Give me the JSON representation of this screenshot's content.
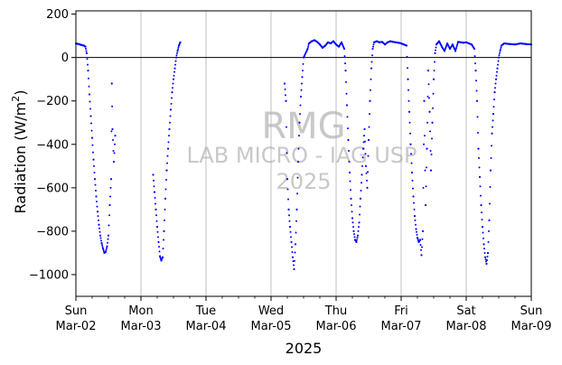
{
  "chart_data": {
    "type": "scatter",
    "ylabel": "Radiation (W/m²)",
    "ylabel_main": "Radiation (W/m",
    "ylabel_sup": "2",
    "ylabel_close": ")",
    "xlabel": "2025",
    "ylim": [
      -1100,
      215
    ],
    "xlim": [
      "2025-03-02",
      "2025-03-09"
    ],
    "yticks": [
      200,
      0,
      -200,
      -400,
      -600,
      -800,
      -1000
    ],
    "ytick_labels": [
      "200",
      "0",
      "−200",
      "−400",
      "−600",
      "−800",
      "−1000"
    ],
    "xticks": [
      {
        "x": "2025-03-02",
        "day": "Sun",
        "date": "Mar-02"
      },
      {
        "x": "2025-03-03",
        "day": "Mon",
        "date": "Mar-03"
      },
      {
        "x": "2025-03-04",
        "day": "Tue",
        "date": "Mar-04"
      },
      {
        "x": "2025-03-05",
        "day": "Wed",
        "date": "Mar-05"
      },
      {
        "x": "2025-03-06",
        "day": "Thu",
        "date": "Mar-06"
      },
      {
        "x": "2025-03-07",
        "day": "Fri",
        "date": "Mar-07"
      },
      {
        "x": "2025-03-08",
        "day": "Sat",
        "date": "Mar-08"
      },
      {
        "x": "2025-03-09",
        "day": "Sun",
        "date": "Mar-09"
      }
    ],
    "grid": "vertical",
    "zero_line": 0,
    "marker_color": "#0000ff",
    "watermark": [
      "RMG",
      "LAB MICRO - IAG USP",
      "2025"
    ],
    "series": [
      {
        "points": [
          [
            "2025-03-02T00:00",
            65
          ],
          [
            "2025-03-02T00:30",
            63
          ],
          [
            "2025-03-02T01:00",
            62
          ],
          [
            "2025-03-02T01:30",
            60
          ],
          [
            "2025-03-02T02:00",
            58
          ],
          [
            "2025-03-02T02:30",
            56
          ],
          [
            "2025-03-02T03:00",
            55
          ],
          [
            "2025-03-02T03:30",
            50
          ],
          [
            "2025-03-02T04:00",
            20
          ],
          [
            "2025-03-02T04:30",
            -60
          ],
          [
            "2025-03-02T05:00",
            -170
          ],
          [
            "2025-03-02T05:30",
            -270
          ],
          [
            "2025-03-02T06:00",
            -370
          ],
          [
            "2025-03-02T06:30",
            -470
          ],
          [
            "2025-03-02T07:00",
            -560
          ],
          [
            "2025-03-02T07:30",
            -640
          ],
          [
            "2025-03-02T08:00",
            -710
          ],
          [
            "2025-03-02T08:30",
            -770
          ],
          [
            "2025-03-02T09:00",
            -820
          ],
          [
            "2025-03-02T09:30",
            -855
          ],
          [
            "2025-03-02T10:00",
            -880
          ],
          [
            "2025-03-02T10:30",
            -900
          ],
          [
            "2025-03-02T11:00",
            -895
          ],
          [
            "2025-03-02T11:30",
            -870
          ],
          [
            "2025-03-02T12:00",
            -820
          ],
          [
            "2025-03-02T12:30",
            -680
          ],
          [
            "2025-03-02T13:00",
            -560
          ],
          [
            "2025-03-02T13:15",
            -120
          ],
          [
            "2025-03-02T13:30",
            -330
          ],
          [
            "2025-03-02T14:00",
            -480
          ],
          [
            "2025-03-02T14:30",
            -360
          ],
          [
            "2025-03-03T04:30",
            -540
          ],
          [
            "2025-03-03T05:00",
            -620
          ],
          [
            "2025-03-03T05:30",
            -700
          ],
          [
            "2025-03-03T06:00",
            -780
          ],
          [
            "2025-03-03T06:30",
            -850
          ],
          [
            "2025-03-03T07:00",
            -915
          ],
          [
            "2025-03-03T07:30",
            -935
          ],
          [
            "2025-03-03T08:00",
            -920
          ],
          [
            "2025-03-03T08:30",
            -800
          ],
          [
            "2025-03-03T09:00",
            -650
          ],
          [
            "2025-03-03T09:30",
            -520
          ],
          [
            "2025-03-03T10:00",
            -420
          ],
          [
            "2025-03-03T10:30",
            -330
          ],
          [
            "2025-03-03T11:00",
            -240
          ],
          [
            "2025-03-03T11:30",
            -160
          ],
          [
            "2025-03-03T12:00",
            -100
          ],
          [
            "2025-03-03T12:30",
            -50
          ],
          [
            "2025-03-03T13:00",
            0
          ],
          [
            "2025-03-03T13:30",
            30
          ],
          [
            "2025-03-03T14:00",
            55
          ],
          [
            "2025-03-03T14:30",
            70
          ],
          [
            "2025-03-05T05:00",
            -120
          ],
          [
            "2025-03-05T05:30",
            -200
          ],
          [
            "2025-03-05T06:00",
            -560
          ],
          [
            "2025-03-05T06:30",
            -700
          ],
          [
            "2025-03-05T07:00",
            -780
          ],
          [
            "2025-03-05T07:30",
            -850
          ],
          [
            "2025-03-05T08:00",
            -920
          ],
          [
            "2025-03-05T08:30",
            -975
          ],
          [
            "2025-03-05T09:00",
            -860
          ],
          [
            "2025-03-05T09:30",
            -700
          ],
          [
            "2025-03-05T10:00",
            -480
          ],
          [
            "2025-03-05T10:30",
            -300
          ],
          [
            "2025-03-05T11:00",
            -180
          ],
          [
            "2025-03-05T11:30",
            -90
          ],
          [
            "2025-03-05T12:00",
            0
          ],
          [
            "2025-03-05T13:30",
            40
          ],
          [
            "2025-03-05T14:00",
            65
          ],
          [
            "2025-03-05T15:00",
            75
          ],
          [
            "2025-03-05T16:00",
            80
          ],
          [
            "2025-03-05T17:00",
            72
          ],
          [
            "2025-03-05T18:00",
            60
          ],
          [
            "2025-03-05T19:00",
            45
          ],
          [
            "2025-03-05T20:00",
            55
          ],
          [
            "2025-03-05T21:00",
            70
          ],
          [
            "2025-03-05T22:00",
            65
          ],
          [
            "2025-03-05T23:00",
            75
          ],
          [
            "2025-03-06T00:00",
            60
          ],
          [
            "2025-03-06T01:00",
            50
          ],
          [
            "2025-03-06T02:00",
            70
          ],
          [
            "2025-03-06T03:00",
            40
          ],
          [
            "2025-03-06T03:30",
            -60
          ],
          [
            "2025-03-06T04:00",
            -220
          ],
          [
            "2025-03-06T04:30",
            -380
          ],
          [
            "2025-03-06T05:00",
            -530
          ],
          [
            "2025-03-06T05:30",
            -650
          ],
          [
            "2025-03-06T06:00",
            -740
          ],
          [
            "2025-03-06T06:30",
            -800
          ],
          [
            "2025-03-06T07:00",
            -840
          ],
          [
            "2025-03-06T07:30",
            -850
          ],
          [
            "2025-03-06T08:00",
            -820
          ],
          [
            "2025-03-06T08:30",
            -760
          ],
          [
            "2025-03-06T09:00",
            -650
          ],
          [
            "2025-03-06T09:30",
            -540
          ],
          [
            "2025-03-06T10:00",
            -420
          ],
          [
            "2025-03-06T10:30",
            -330
          ],
          [
            "2025-03-06T11:00",
            -500
          ],
          [
            "2025-03-06T11:30",
            -600
          ],
          [
            "2025-03-06T12:00",
            -380
          ],
          [
            "2025-03-06T12:30",
            -200
          ],
          [
            "2025-03-06T13:00",
            -50
          ],
          [
            "2025-03-06T13:30",
            40
          ],
          [
            "2025-03-06T14:00",
            70
          ],
          [
            "2025-03-06T15:00",
            75
          ],
          [
            "2025-03-06T16:00",
            70
          ],
          [
            "2025-03-06T17:00",
            72
          ],
          [
            "2025-03-06T18:00",
            60
          ],
          [
            "2025-03-06T19:00",
            70
          ],
          [
            "2025-03-06T20:00",
            75
          ],
          [
            "2025-03-06T21:00",
            72
          ],
          [
            "2025-03-06T22:00",
            70
          ],
          [
            "2025-03-06T23:00",
            68
          ],
          [
            "2025-03-07T00:00",
            65
          ],
          [
            "2025-03-07T01:00",
            60
          ],
          [
            "2025-03-07T02:00",
            55
          ],
          [
            "2025-03-07T02:30",
            -100
          ],
          [
            "2025-03-07T03:00",
            -250
          ],
          [
            "2025-03-07T03:30",
            -400
          ],
          [
            "2025-03-07T04:00",
            -530
          ],
          [
            "2025-03-07T04:30",
            -640
          ],
          [
            "2025-03-07T05:00",
            -730
          ],
          [
            "2025-03-07T05:30",
            -790
          ],
          [
            "2025-03-07T06:00",
            -830
          ],
          [
            "2025-03-07T06:30",
            -850
          ],
          [
            "2025-03-07T07:00",
            -840
          ],
          [
            "2025-03-07T07:30",
            -910
          ],
          [
            "2025-03-07T08:00",
            -800
          ],
          [
            "2025-03-07T08:30",
            -200
          ],
          [
            "2025-03-07T09:00",
            -680
          ],
          [
            "2025-03-07T09:30",
            -420
          ],
          [
            "2025-03-07T10:00",
            -60
          ],
          [
            "2025-03-07T10:30",
            -250
          ],
          [
            "2025-03-07T11:00",
            -520
          ],
          [
            "2025-03-07T11:30",
            -300
          ],
          [
            "2025-03-07T12:00",
            -100
          ],
          [
            "2025-03-07T12:30",
            20
          ],
          [
            "2025-03-07T13:00",
            60
          ],
          [
            "2025-03-07T14:00",
            75
          ],
          [
            "2025-03-07T15:00",
            50
          ],
          [
            "2025-03-07T16:00",
            30
          ],
          [
            "2025-03-07T17:00",
            65
          ],
          [
            "2025-03-07T18:00",
            40
          ],
          [
            "2025-03-07T19:00",
            60
          ],
          [
            "2025-03-07T20:00",
            30
          ],
          [
            "2025-03-07T21:00",
            72
          ],
          [
            "2025-03-07T22:00",
            70
          ],
          [
            "2025-03-07T23:00",
            68
          ],
          [
            "2025-03-08T00:00",
            70
          ],
          [
            "2025-03-08T01:00",
            65
          ],
          [
            "2025-03-08T02:00",
            60
          ],
          [
            "2025-03-08T03:00",
            40
          ],
          [
            "2025-03-08T03:30",
            -60
          ],
          [
            "2025-03-08T04:00",
            -200
          ],
          [
            "2025-03-08T04:30",
            -420
          ],
          [
            "2025-03-08T05:00",
            -550
          ],
          [
            "2025-03-08T05:30",
            -680
          ],
          [
            "2025-03-08T06:00",
            -780
          ],
          [
            "2025-03-08T06:30",
            -860
          ],
          [
            "2025-03-08T07:00",
            -920
          ],
          [
            "2025-03-08T07:30",
            -950
          ],
          [
            "2025-03-08T08:00",
            -900
          ],
          [
            "2025-03-08T08:30",
            -750
          ],
          [
            "2025-03-08T09:00",
            -520
          ],
          [
            "2025-03-08T09:30",
            -350
          ],
          [
            "2025-03-08T10:00",
            -260
          ],
          [
            "2025-03-08T10:30",
            -160
          ],
          [
            "2025-03-08T11:00",
            -100
          ],
          [
            "2025-03-08T11:30",
            -50
          ],
          [
            "2025-03-08T12:00",
            0
          ],
          [
            "2025-03-08T12:30",
            30
          ],
          [
            "2025-03-08T13:00",
            55
          ],
          [
            "2025-03-08T14:00",
            65
          ],
          [
            "2025-03-08T16:00",
            62
          ],
          [
            "2025-03-08T18:00",
            60
          ],
          [
            "2025-03-08T20:00",
            65
          ],
          [
            "2025-03-08T22:00",
            62
          ],
          [
            "2025-03-08T23:59",
            60
          ]
        ]
      }
    ]
  }
}
